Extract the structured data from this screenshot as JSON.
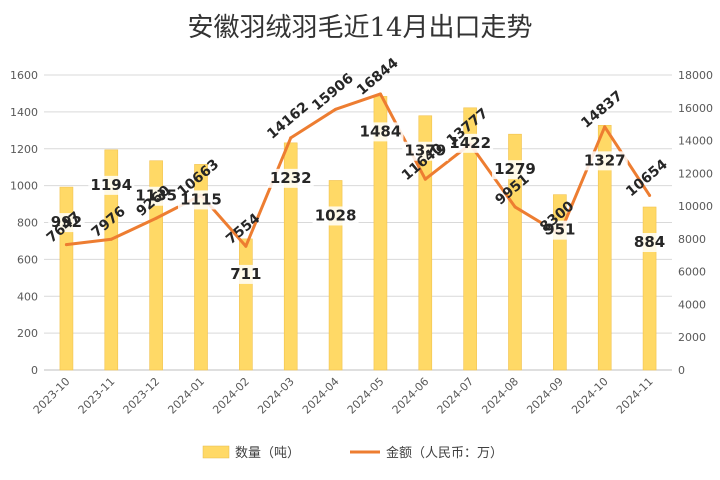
{
  "chart_data": {
    "type": "bar",
    "title": "安徽羽绒羽毛近14月出口走势",
    "categories": [
      "2023-10",
      "2023-11",
      "2023-12",
      "2024-01",
      "2024-02",
      "2024-03",
      "2024-04",
      "2024-05",
      "2024-06",
      "2024-07",
      "2024-08",
      "2024-09",
      "2024-10",
      "2024-11"
    ],
    "series": [
      {
        "name": "数量（吨）",
        "type": "bar",
        "axis": "left",
        "color": "#FFD966",
        "values": [
          992,
          1194,
          1135,
          1115,
          711,
          1232,
          1028,
          1484,
          1379,
          1422,
          1279,
          951,
          1327,
          884
        ]
      },
      {
        "name": "金额（人民币：万）",
        "type": "line",
        "axis": "right",
        "color": "#ED7D31",
        "values": [
          7647,
          7976,
          9260,
          10663,
          7554,
          14162,
          15906,
          16844,
          11640,
          13777,
          9951,
          8300,
          14837,
          10654
        ]
      }
    ],
    "y_left": {
      "min": 0,
      "max": 1600,
      "ticks": [
        "0",
        "200",
        "400",
        "600",
        "800",
        "1000",
        "1200",
        "1400",
        "1600"
      ]
    },
    "y_right": {
      "min": 0,
      "max": 18000,
      "ticks": [
        "0",
        "2000",
        "4000",
        "6000",
        "8000",
        "10000",
        "12000",
        "14000",
        "16000",
        "18000"
      ]
    },
    "grid": true,
    "legend_position": "bottom"
  }
}
